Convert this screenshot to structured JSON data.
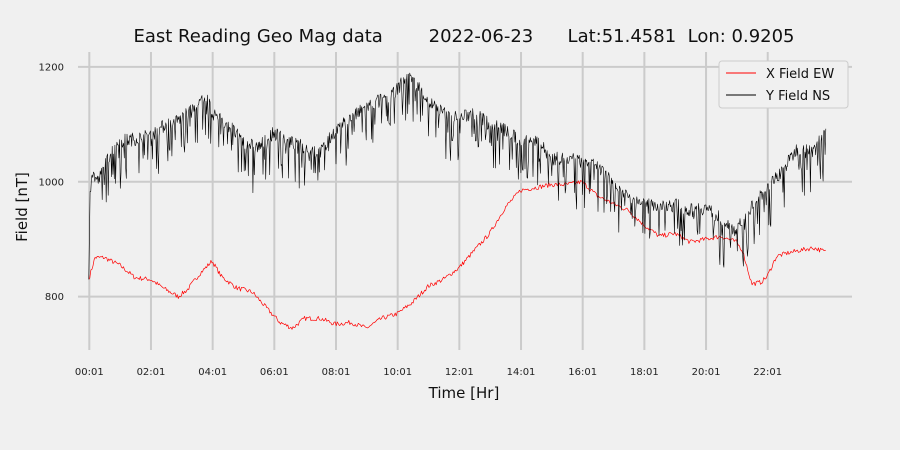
{
  "chart_data": {
    "type": "line",
    "title": "East Reading Geo Mag data        2022-06-23      Lat:51.4581  Lon: 0.9205",
    "xlabel": "Time  [Hr]",
    "ylabel": "Field  [nT]",
    "x_unit": "hours",
    "xlim": [
      -0.35,
      24.75
    ],
    "ylim": [
      707,
      1226
    ],
    "x_ticks": [
      {
        "value": 0.0167,
        "label": "00:01"
      },
      {
        "value": 2.0167,
        "label": "02:01"
      },
      {
        "value": 4.0167,
        "label": "04:01"
      },
      {
        "value": 6.0167,
        "label": "06:01"
      },
      {
        "value": 8.0167,
        "label": "08:01"
      },
      {
        "value": 10.0167,
        "label": "10:01"
      },
      {
        "value": 12.0167,
        "label": "12:01"
      },
      {
        "value": 14.0167,
        "label": "14:01"
      },
      {
        "value": 16.0167,
        "label": "16:01"
      },
      {
        "value": 18.0167,
        "label": "18:01"
      },
      {
        "value": 20.0167,
        "label": "20:01"
      },
      {
        "value": 22.0167,
        "label": "22:01"
      }
    ],
    "y_ticks": [
      {
        "value": 800,
        "label": "800"
      },
      {
        "value": 1000,
        "label": "1000"
      },
      {
        "value": 1200,
        "label": "1200"
      }
    ],
    "grid": true,
    "legend_position": "top-right",
    "series": [
      {
        "name": "X Field EW",
        "color": "#ff0000",
        "x": [
          0,
          0.2,
          0.5,
          1,
          1.5,
          2,
          2.5,
          2.9,
          3.2,
          3.6,
          4.0,
          4.3,
          4.8,
          5.3,
          5.8,
          6.2,
          6.6,
          7.0,
          7.5,
          8.0,
          8.5,
          9.0,
          9.5,
          10.0,
          10.5,
          11.0,
          11.5,
          12.0,
          12.5,
          13.0,
          13.5,
          14.0,
          14.5,
          15.0,
          15.5,
          16.0,
          16.5,
          17.0,
          17.5,
          18.0,
          18.5,
          19.0,
          19.5,
          20.0,
          20.5,
          21.0,
          21.2,
          21.5,
          21.8,
          22.0,
          22.3,
          22.6,
          23.0,
          23.5,
          23.9
        ],
        "y": [
          830,
          868,
          868,
          855,
          833,
          830,
          812,
          800,
          812,
          840,
          862,
          835,
          815,
          808,
          778,
          755,
          745,
          762,
          762,
          752,
          755,
          745,
          762,
          770,
          790,
          818,
          830,
          850,
          880,
          910,
          955,
          985,
          990,
          995,
          995,
          1000,
          975,
          962,
          950,
          925,
          905,
          910,
          895,
          900,
          905,
          895,
          880,
          822,
          825,
          835,
          870,
          875,
          880,
          885,
          878
        ]
      },
      {
        "name": "Y Field NS",
        "color": "#000000",
        "x": [
          0,
          0.05,
          0.3,
          0.7,
          1.0,
          1.5,
          2.0,
          2.5,
          3.0,
          3.5,
          3.8,
          4.0,
          4.5,
          5.0,
          5.5,
          6.0,
          6.5,
          7.0,
          7.5,
          8.0,
          8.5,
          9.0,
          9.5,
          10.0,
          10.3,
          10.7,
          11.0,
          11.5,
          12.0,
          12.5,
          13.0,
          13.5,
          14.0,
          14.5,
          15.0,
          15.5,
          16.0,
          16.5,
          17.0,
          17.5,
          18.0,
          18.5,
          19.0,
          19.5,
          20.0,
          20.5,
          21.0,
          21.5,
          22.0,
          22.5,
          23.0,
          23.5,
          23.9
        ],
        "y": [
          830,
          1020,
          1000,
          1050,
          1070,
          1075,
          1080,
          1100,
          1110,
          1130,
          1150,
          1120,
          1100,
          1070,
          1060,
          1085,
          1070,
          1060,
          1050,
          1090,
          1110,
          1130,
          1145,
          1160,
          1185,
          1165,
          1140,
          1120,
          1110,
          1120,
          1100,
          1090,
          1070,
          1075,
          1040,
          1040,
          1035,
          1025,
          1000,
          975,
          970,
          955,
          960,
          950,
          955,
          935,
          915,
          955,
          990,
          1020,
          1060,
          1050,
          1095
        ]
      }
    ]
  }
}
